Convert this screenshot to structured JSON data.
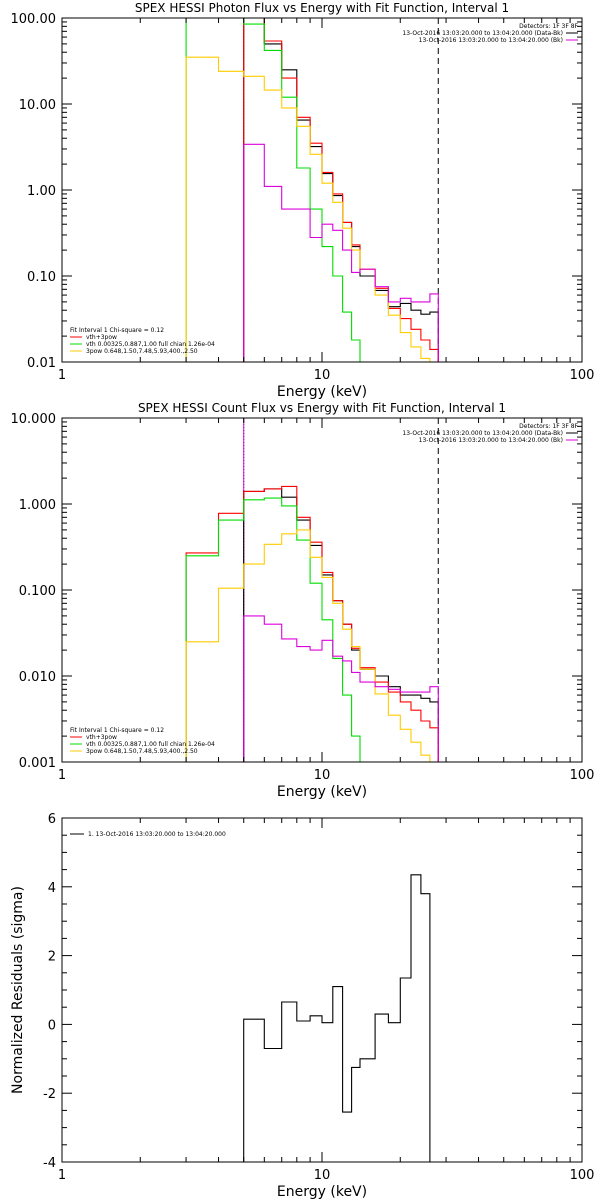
{
  "colors": {
    "total": "#000000",
    "model": "#ff0000",
    "vth": "#00dd00",
    "3pow": "#ffcc00",
    "bk": "#dd00dd",
    "dashed": "#000000"
  },
  "chart_data": [
    {
      "type": "line",
      "id": "photon",
      "title": "SPEX HESSI Photon Flux vs Energy with Fit Function, Interval 1",
      "xlabel": "Energy (keV)",
      "ylabel": "",
      "xscale": "log",
      "yscale": "log",
      "xlim": [
        1,
        100
      ],
      "ylim": [
        0.01,
        100
      ],
      "xticks": [
        1,
        10,
        100
      ],
      "xticklabels": [
        "1",
        "10",
        "100"
      ],
      "yticks": [
        0.01,
        0.1,
        1,
        10,
        100
      ],
      "yticklabels": [
        "0.01",
        "0.10",
        "1.00",
        "10.00",
        "100.00"
      ],
      "vlines": [
        {
          "x": 5,
          "style": "dotted",
          "color": "#dd00dd"
        },
        {
          "x": 28,
          "style": "dashed"
        }
      ],
      "edges": [
        3,
        4,
        5,
        6,
        7,
        8,
        9,
        10,
        11,
        12,
        13,
        14,
        16,
        18,
        20,
        22,
        24,
        26,
        28
      ],
      "series": [
        {
          "name": "Total",
          "color": "#000000",
          "values": [
            null,
            null,
            100,
            50,
            25,
            6.5,
            3.2,
            1.55,
            0.86,
            0.42,
            0.22,
            0.1,
            0.068,
            0.044,
            0.048,
            0.04,
            0.036,
            0.038
          ]
        },
        {
          "name": "vth+3pow",
          "color": "#ff0000",
          "values": [
            null,
            null,
            100,
            54,
            20,
            7,
            3.5,
            1.6,
            0.9,
            0.42,
            0.23,
            0.12,
            0.072,
            0.042,
            0.032,
            0.024,
            0.018,
            0.014
          ]
        },
        {
          "name": "vth",
          "color": "#00dd00",
          "values": [
            100,
            100,
            85,
            42,
            12,
            1.8,
            0.6,
            0.22,
            0.1,
            0.038,
            0.018,
            0.008,
            null,
            null,
            null,
            null,
            null,
            null
          ]
        },
        {
          "name": "3pow",
          "color": "#ffcc00",
          "values": [
            35,
            24,
            21,
            14.5,
            9,
            5.5,
            2.6,
            1.2,
            0.72,
            0.36,
            0.2,
            0.12,
            0.06,
            0.035,
            0.022,
            0.015,
            0.011,
            0.008
          ]
        },
        {
          "name": "Background",
          "color": "#dd00dd",
          "values": [
            null,
            null,
            3.4,
            1.1,
            0.6,
            0.6,
            0.28,
            0.4,
            0.34,
            0.2,
            0.11,
            0.12,
            0.075,
            0.05,
            0.055,
            0.05,
            0.05,
            0.062
          ]
        }
      ],
      "legend_top": {
        "detectors": "Detectors: 1F 3F 8F",
        "entries": [
          {
            "text": "13-Oct-2016 13:03:20.000 to 13:04:20.000 (Data-Bk)",
            "color": "#000000"
          },
          {
            "text": "13-Oct-2016 13:03:20.000 to 13:04:20.000 (Bk)",
            "color": "#dd00dd"
          }
        ]
      },
      "legend_bottom": {
        "header": "Fit Interval 1   Chi-square = 0.12",
        "entries": [
          {
            "text": "vth+3pow",
            "color": "#ff0000"
          },
          {
            "text": "vth 0.00325,0.887,1.00  full chian 1.26e-04",
            "color": "#00dd00"
          },
          {
            "text": "3pow 0.648,1.50,7.48,5.93,400.,2.50",
            "color": "#ffcc00"
          }
        ]
      }
    },
    {
      "type": "line",
      "id": "count",
      "title": "SPEX HESSI Count Flux vs Energy with Fit Function, Interval 1",
      "xlabel": "Energy (keV)",
      "ylabel": "",
      "xscale": "log",
      "yscale": "log",
      "xlim": [
        1,
        100
      ],
      "ylim": [
        0.001,
        10
      ],
      "xticks": [
        1,
        10,
        100
      ],
      "xticklabels": [
        "1",
        "10",
        "100"
      ],
      "yticks": [
        0.001,
        0.01,
        0.1,
        1,
        10
      ],
      "yticklabels": [
        "0.001",
        "0.010",
        "0.100",
        "1.000",
        "10.000"
      ],
      "vlines": [
        {
          "x": 5,
          "style": "dotted"
        },
        {
          "x": 5,
          "style": "solid",
          "color": "#dd00dd"
        },
        {
          "x": 28,
          "style": "dashed"
        }
      ],
      "edges": [
        3,
        4,
        5,
        6,
        7,
        8,
        9,
        10,
        11,
        12,
        13,
        14,
        16,
        18,
        20,
        22,
        24,
        26,
        28
      ],
      "series": [
        {
          "name": "Total",
          "color": "#000000",
          "values": [
            null,
            null,
            1.4,
            1.5,
            1.2,
            0.65,
            0.33,
            0.15,
            0.075,
            0.04,
            0.02,
            0.012,
            0.01,
            0.0075,
            0.006,
            0.006,
            0.0055,
            0.005
          ]
        },
        {
          "name": "vth+3pow",
          "color": "#ff0000",
          "values": [
            0.27,
            0.78,
            1.4,
            1.5,
            1.6,
            0.7,
            0.36,
            0.16,
            0.075,
            0.04,
            0.021,
            0.0125,
            0.0085,
            0.0065,
            0.005,
            0.004,
            0.003,
            0.0025
          ]
        },
        {
          "name": "vth",
          "color": "#00dd00",
          "values": [
            0.25,
            0.65,
            1.12,
            1.17,
            0.95,
            0.38,
            0.12,
            0.045,
            0.016,
            0.006,
            0.002,
            0.0008,
            null,
            null,
            null,
            null,
            null,
            null
          ]
        },
        {
          "name": "3pow",
          "color": "#ffcc00",
          "values": [
            0.025,
            0.105,
            0.2,
            0.34,
            0.45,
            0.5,
            0.24,
            0.14,
            0.07,
            0.035,
            0.022,
            0.012,
            0.0062,
            0.0035,
            0.0024,
            0.0017,
            0.0012,
            0.0008
          ]
        },
        {
          "name": "Background",
          "color": "#dd00dd",
          "values": [
            null,
            null,
            0.05,
            0.04,
            0.027,
            0.022,
            0.02,
            0.026,
            0.017,
            0.015,
            0.011,
            0.0085,
            0.0075,
            0.007,
            0.0065,
            0.0065,
            0.0065,
            0.0075
          ]
        }
      ],
      "legend_top": {
        "detectors": "Detectors: 1F 3F 8F",
        "entries": [
          {
            "text": "13-Oct-2016 13:03:20.000 to 13:04:20.000 (Data-Bk)",
            "color": "#000000"
          },
          {
            "text": "13-Oct-2016 13:03:20.000 to 13:04:20.000 (Bk)",
            "color": "#dd00dd"
          }
        ]
      },
      "legend_bottom": {
        "header": "Fit Interval 1   Chi-square = 0.12",
        "entries": [
          {
            "text": "vth+3pow",
            "color": "#ff0000"
          },
          {
            "text": "vth 0.00325,0.887,1.00  full chian 1.26e-04",
            "color": "#00dd00"
          },
          {
            "text": "3pow 0.648,1.50,7.48,5.93,400.,2.50",
            "color": "#ffcc00"
          }
        ]
      }
    },
    {
      "type": "line",
      "id": "residuals",
      "title": "",
      "xlabel": "Energy (keV)",
      "ylabel": "Normalized Residuals (sigma)",
      "xscale": "log",
      "yscale": "linear",
      "xlim": [
        1,
        100
      ],
      "ylim": [
        -4,
        6
      ],
      "xticks": [
        1,
        10,
        100
      ],
      "xticklabels": [
        "1",
        "10",
        "100"
      ],
      "yticks": [
        -4,
        -2,
        0,
        2,
        4,
        6
      ],
      "yticklabels": [
        "-4",
        "-2",
        "0",
        "2",
        "4",
        "6"
      ],
      "edges": [
        5,
        6,
        7,
        8,
        9,
        10,
        11,
        12,
        13,
        14,
        16,
        18,
        20,
        22,
        24,
        26,
        28
      ],
      "series": [
        {
          "name": "1. 13-Oct-2016 13:03:20.000 to 13:04:20.000",
          "color": "#000000",
          "values": [
            0.15,
            -0.7,
            0.65,
            0.1,
            0.25,
            0.05,
            1.1,
            -2.55,
            -1.25,
            -1.0,
            0.3,
            0.05,
            1.35,
            4.35,
            3.8,
            null
          ]
        }
      ],
      "legend_top": {
        "entries": [
          {
            "text": "1. 13-Oct-2016 13:03:20.000 to 13:04:20.000",
            "color": "#000000"
          }
        ]
      }
    }
  ]
}
